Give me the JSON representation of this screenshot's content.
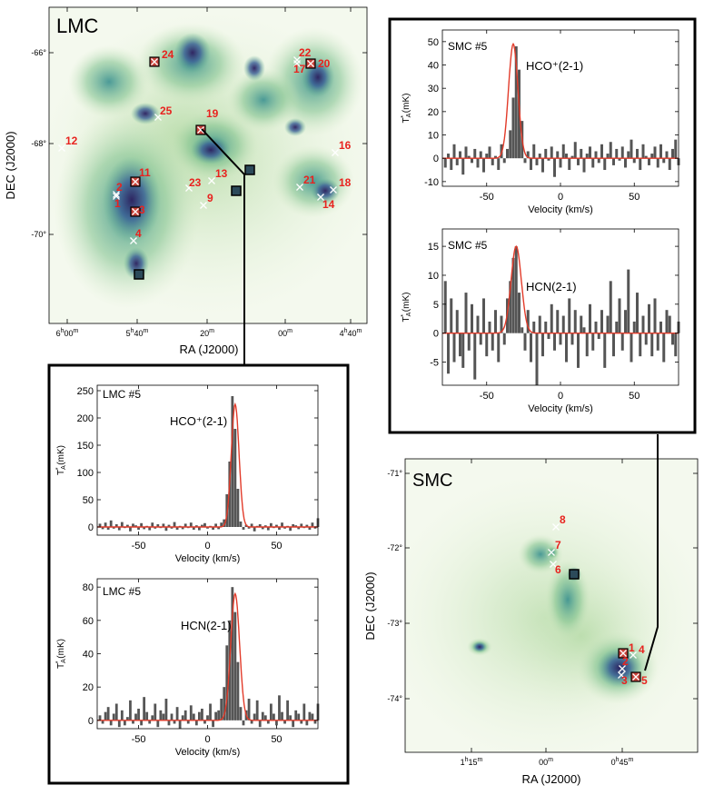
{
  "colors": {
    "red": "#e8231f",
    "bar": "#555555",
    "fit": "#e23b2a",
    "map_light": "#e8f3dc",
    "map_mid": "#5fb38a",
    "map_dark": "#35327a"
  },
  "lmc_map": {
    "title": "LMC",
    "xlabel": "RA (J2000)",
    "ylabel": "DEC (J2000)",
    "ra_ticks": [
      "6h00m",
      "5h40m",
      "20m",
      "00m",
      "4h40m"
    ],
    "dec_ticks": [
      "-66°",
      "-68°",
      "-70°"
    ],
    "sources": [
      "24",
      "22",
      "17",
      "20",
      "25",
      "19",
      "12",
      "16",
      "11",
      "2",
      "1",
      "23",
      "13",
      "9",
      "21",
      "18",
      "14",
      "3",
      "4"
    ]
  },
  "smc_map": {
    "title": "SMC",
    "xlabel": "RA (J2000)",
    "ylabel": "DEC (J2000)",
    "ra_ticks": [
      "1h15m",
      "00m",
      "0h45m"
    ],
    "dec_ticks": [
      "-71°",
      "-72°",
      "-73°",
      "-74°"
    ],
    "sources": [
      "8",
      "7",
      "6",
      "1",
      "4",
      "2",
      "3",
      "5"
    ]
  },
  "chart_data": [
    {
      "type": "bar",
      "panel": "smc-hco",
      "label": "SMC  #5",
      "line": "HCO⁺(2-1)",
      "xlabel": "Velocity (km/s)",
      "ylabel": "T*A (mK)",
      "xlim": [
        -80,
        80
      ],
      "ylim": [
        -12,
        55
      ],
      "yticks": [
        -10,
        0,
        10,
        20,
        30,
        40,
        50
      ],
      "xticks": [
        -50,
        0,
        50
      ],
      "fit": {
        "peak": 49,
        "center": -32,
        "sigma": 3.2
      },
      "velocity_start": -78,
      "velocity_step": 2,
      "values": [
        -4,
        2,
        -5,
        6,
        -3,
        3,
        -7,
        5,
        1,
        -2,
        4,
        -4,
        3,
        -6,
        2,
        5,
        -3,
        1,
        -5,
        6,
        -2,
        4,
        12,
        26,
        48,
        38,
        16,
        -2,
        3,
        -5,
        6,
        -3,
        2,
        -6,
        4,
        -1,
        5,
        -8,
        3,
        -4,
        6,
        2,
        -5,
        1,
        7,
        -3,
        4,
        -6,
        2,
        5,
        -4,
        3,
        -2,
        6,
        -5,
        2,
        7,
        -3,
        4,
        -1,
        5,
        -4,
        3,
        8,
        -2,
        4,
        -5,
        6,
        1,
        -3,
        2,
        5,
        -4,
        6,
        -2,
        3,
        -5,
        4,
        8,
        -3
      ]
    },
    {
      "type": "bar",
      "panel": "smc-hcn",
      "label": "SMC  #5",
      "line": "HCN(2-1)",
      "xlabel": "Velocity (km/s)",
      "ylabel": "T*A (mK)",
      "xlim": [
        -80,
        80
      ],
      "ylim": [
        -9,
        18
      ],
      "yticks": [
        -5,
        0,
        5,
        10,
        15
      ],
      "xticks": [
        -50,
        0,
        50
      ],
      "fit": {
        "peak": 15,
        "center": -30,
        "sigma": 3.5
      },
      "velocity_start": -78,
      "velocity_step": 2,
      "values": [
        9,
        -7,
        6,
        -5,
        4,
        -4,
        -6,
        7,
        -3,
        5,
        -8,
        3,
        -2,
        6,
        -4,
        2,
        -3,
        4,
        -5,
        3,
        -2,
        6,
        9,
        13,
        15,
        7,
        1,
        -3,
        4,
        -5,
        2,
        -9,
        3,
        -4,
        2,
        -1,
        5,
        -3,
        4,
        -2,
        3,
        -5,
        6,
        -2,
        4,
        -6,
        3,
        1,
        -4,
        5,
        -3,
        2,
        -1,
        4,
        -6,
        3,
        9,
        -4,
        2,
        6,
        -3,
        4,
        11,
        -5,
        2,
        7,
        -4,
        3,
        -2,
        5,
        -4,
        6,
        -3,
        2,
        -5,
        4,
        3,
        -2,
        -4,
        2
      ]
    },
    {
      "type": "bar",
      "panel": "lmc-hco",
      "label": "LMC  #5",
      "line": "HCO⁺(2-1)",
      "xlabel": "Velocity (km/s)",
      "ylabel": "T*A (mK)",
      "xlim": [
        -80,
        80
      ],
      "ylim": [
        -15,
        260
      ],
      "yticks": [
        0,
        50,
        100,
        150,
        200,
        250
      ],
      "xticks": [
        -50,
        0,
        50
      ],
      "fit": {
        "peak": 225,
        "center": 20,
        "sigma": 2.8
      },
      "velocity_start": -78,
      "velocity_step": 2,
      "values": [
        6,
        -4,
        8,
        -5,
        12,
        -3,
        5,
        -6,
        9,
        -2,
        4,
        -8,
        6,
        3,
        -5,
        7,
        -4,
        2,
        -6,
        8,
        -3,
        5,
        -2,
        6,
        -7,
        4,
        -3,
        9,
        -5,
        2,
        -4,
        6,
        -2,
        8,
        -5,
        3,
        -6,
        4,
        7,
        -3,
        2,
        -5,
        6,
        -4,
        8,
        14,
        60,
        120,
        240,
        180,
        70,
        10,
        -5,
        4,
        -3,
        6,
        -8,
        2,
        5,
        -4,
        3,
        -6,
        7,
        -2,
        4,
        -5,
        8,
        -3,
        2,
        -7,
        5,
        3,
        -4,
        6,
        -2,
        4,
        -5,
        8,
        -3,
        16
      ]
    },
    {
      "type": "bar",
      "panel": "lmc-hcn",
      "label": "LMC  #5",
      "line": "HCN(2-1)",
      "xlabel": "Velocity (km/s)",
      "ylabel": "T*A (mK)",
      "xlim": [
        -80,
        80
      ],
      "ylim": [
        -5,
        85
      ],
      "yticks": [
        0,
        20,
        40,
        60,
        80
      ],
      "xticks": [
        -50,
        0,
        50
      ],
      "fit": {
        "peak": 76,
        "center": 20,
        "sigma": 3.2
      },
      "velocity_start": -78,
      "velocity_step": 2,
      "values": [
        3,
        -2,
        5,
        8,
        -3,
        4,
        10,
        -4,
        6,
        -3,
        2,
        12,
        -2,
        4,
        7,
        -3,
        14,
        5,
        -2,
        3,
        10,
        -4,
        6,
        4,
        13,
        -3,
        4,
        -2,
        8,
        -5,
        3,
        6,
        -2,
        9,
        4,
        -3,
        5,
        7,
        -2,
        3,
        10,
        -4,
        5,
        6,
        13,
        20,
        45,
        60,
        80,
        65,
        35,
        8,
        -3,
        6,
        13,
        -2,
        4,
        12,
        -4,
        5,
        3,
        -2,
        10,
        4,
        -3,
        15,
        5,
        -2,
        12,
        3,
        -4,
        6,
        4,
        -2,
        10,
        -3,
        5,
        4,
        -2,
        10
      ]
    }
  ]
}
